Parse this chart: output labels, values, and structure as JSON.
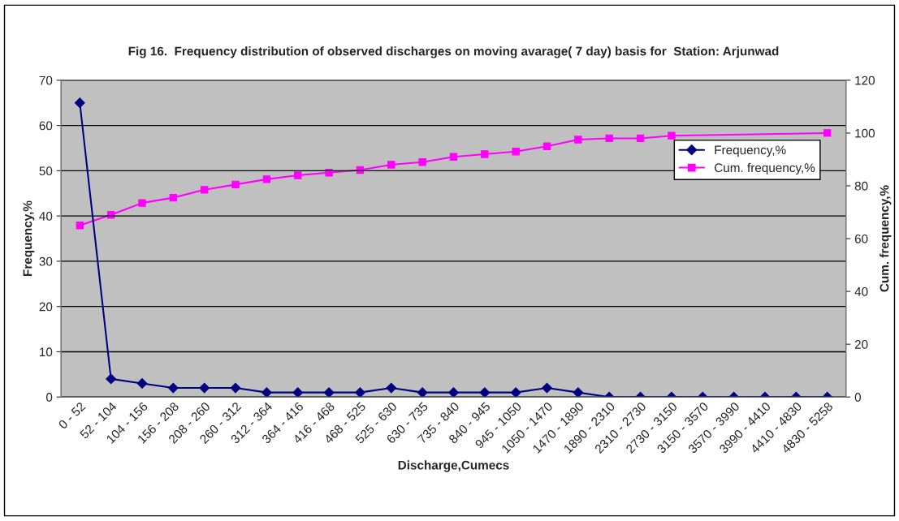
{
  "chart_data": {
    "type": "line",
    "title": "Fig 16.  Frequency distribution of observed discharges on moving avarage( 7 day) basis for  Station: Arjunwad",
    "xlabel": "Discharge,Cumecs",
    "ylabel": "Frequency,%",
    "y2label": "Cum. frequency,%",
    "categories": [
      "0 - 52",
      "52 - 104",
      "104 - 156",
      "156 - 208",
      "208 - 260",
      "260 - 312",
      "312 - 364",
      "364 - 416",
      "416 - 468",
      "468 - 525",
      "525 - 630",
      "630 - 735",
      "735 - 840",
      "840 - 945",
      "945 - 1050",
      "1050 - 1470",
      "1470 - 1890",
      "1890 - 2310",
      "2310 - 2730",
      "2730 - 3150",
      "3150 - 3570",
      "3570 - 3990",
      "3990 - 4410",
      "4410 - 4830",
      "4830 - 5258"
    ],
    "series": [
      {
        "name": "Frequency,%",
        "color": "#000080",
        "marker": "diamond",
        "values": [
          65,
          4,
          3,
          2,
          2,
          2,
          1,
          1,
          1,
          1,
          2,
          1,
          1,
          1,
          1,
          2,
          1,
          0,
          0,
          0,
          0,
          0,
          0,
          0,
          0
        ]
      },
      {
        "name": "Cum. frequency,%",
        "color": "#ff00ff",
        "marker": "square",
        "axis": "y2",
        "values": [
          65,
          69,
          73.5,
          75.5,
          78.5,
          80.5,
          82.5,
          84,
          85,
          86,
          88,
          89,
          91,
          92,
          93,
          95,
          97.5,
          98,
          98,
          99,
          null,
          null,
          null,
          null,
          100
        ]
      }
    ],
    "ylim": [
      0,
      70
    ],
    "yticks": [
      0,
      10,
      20,
      30,
      40,
      50,
      60,
      70
    ],
    "y2lim": [
      0,
      120
    ],
    "y2ticks": [
      0,
      20,
      40,
      60,
      80,
      100,
      120
    ],
    "grid": "y",
    "legend": "top right"
  }
}
